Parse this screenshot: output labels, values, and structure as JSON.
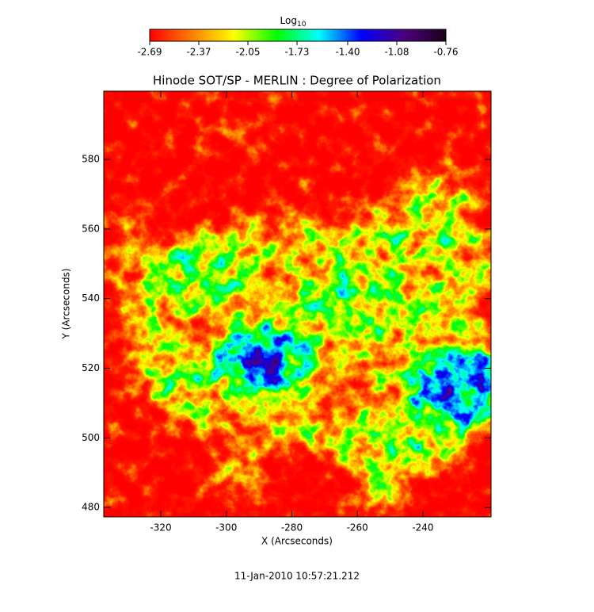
{
  "chart_data": {
    "type": "heatmap",
    "title": "Hinode SOT/SP - MERLIN : Degree of Polarization",
    "xlabel": "X (Arcseconds)",
    "ylabel": "Y (Arcseconds)",
    "footer": "11-Jan-2010 10:57:21.212",
    "xlim": [
      -337.4,
      -219.2
    ],
    "xticks": [
      -320,
      -300,
      -280,
      -260,
      -240
    ],
    "ylim": [
      477.3,
      599.6
    ],
    "yticks": [
      480,
      500,
      520,
      540,
      560,
      580
    ],
    "colorbar": {
      "title": "Log",
      "title_subscript": "10",
      "zlim": [
        -2.69,
        -0.76
      ],
      "ticks": [
        -2.69,
        -2.37,
        -2.05,
        -1.73,
        {
          "value": -1.4,
          "label": "-1.40"
        },
        -1.08,
        -0.76
      ],
      "colormap": [
        "#ff0000",
        "#ff7f00",
        "#ffff00",
        "#00ff00",
        "#00ffff",
        "#0000ff",
        "#4c0080",
        "#1a001a"
      ]
    }
  }
}
